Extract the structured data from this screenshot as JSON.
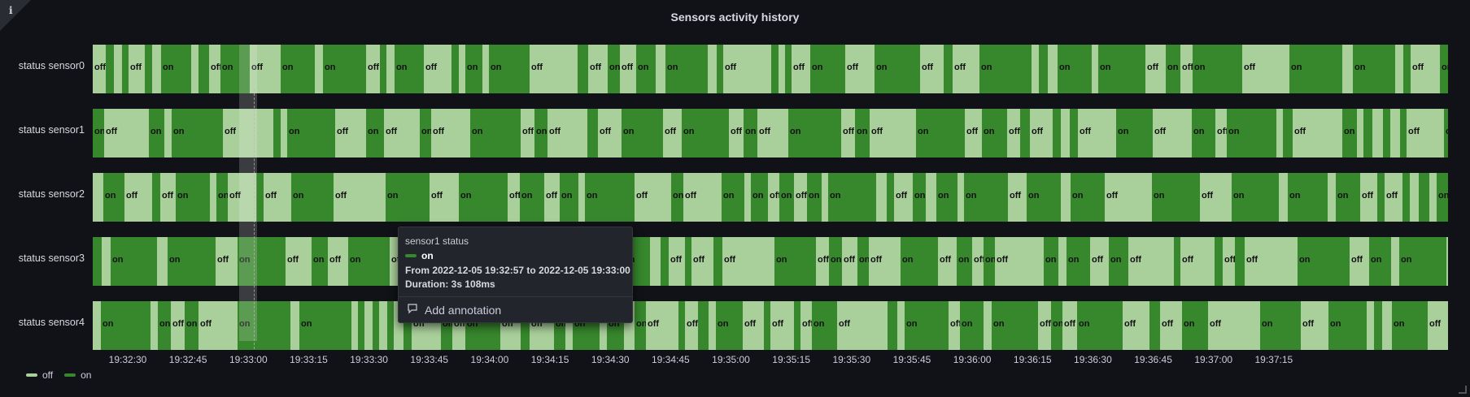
{
  "panel": {
    "title": "Sensors activity history",
    "info_glyph": "i"
  },
  "colors": {
    "off": "#a9cf9b",
    "on": "#37872d"
  },
  "chart_data": {
    "type": "state-timeline",
    "rows": [
      {
        "label": "status sensor0",
        "name": "sensor0"
      },
      {
        "label": "status sensor1",
        "name": "sensor1"
      },
      {
        "label": "status sensor2",
        "name": "sensor2"
      },
      {
        "label": "status sensor3",
        "name": "sensor3"
      },
      {
        "label": "status sensor4",
        "name": "sensor4"
      }
    ],
    "x_ticks": [
      "19:32:30",
      "19:32:45",
      "19:33:00",
      "19:33:15",
      "19:33:30",
      "19:33:45",
      "19:34:00",
      "19:34:15",
      "19:34:30",
      "19:34:45",
      "19:35:00",
      "19:35:15",
      "19:35:30",
      "19:35:45",
      "19:36:00",
      "19:36:15",
      "19:36:30",
      "19:36:45",
      "19:37:00",
      "19:37:15"
    ],
    "legend": [
      {
        "label": "off",
        "color": "#a9cf9b"
      },
      {
        "label": "on",
        "color": "#37872d"
      }
    ],
    "states": [
      "off",
      "on"
    ]
  },
  "tooltip": {
    "title": "sensor1 status",
    "state": "on",
    "range": "From 2022-12-05 19:32:57 to 2022-12-05 19:33:00",
    "duration": "Duration: 3s 108ms",
    "add_annotation": "Add annotation"
  }
}
